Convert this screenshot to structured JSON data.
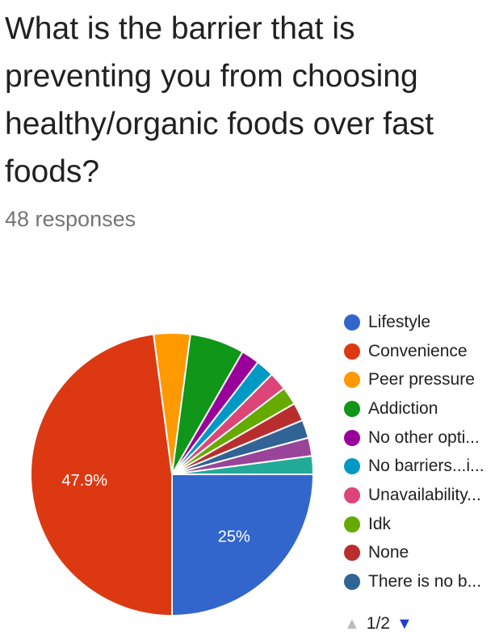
{
  "question": {
    "title": "What is the barrier that is preventing you from choosing healthy/organic foods over fast foods?",
    "responses": "48 responses"
  },
  "pager": {
    "page": "1/2",
    "prev_icon": "triangle-up-icon",
    "next_icon": "triangle-down-icon"
  },
  "chart_data": {
    "type": "pie",
    "slices": [
      {
        "label": "Lifestyle",
        "value": 25,
        "count": 12,
        "color": "#3366cc",
        "data_label": "25%"
      },
      {
        "label": "Convenience",
        "value": 47.9,
        "count": 23,
        "color": "#dc3912",
        "data_label": "47.9%"
      },
      {
        "label": "Peer pressure",
        "value": 4.2,
        "count": 2,
        "color": "#ff9900"
      },
      {
        "label": "Addiction",
        "value": 6.3,
        "count": 3,
        "color": "#109618"
      },
      {
        "label": "No other opti...",
        "value": 2.1,
        "count": 1,
        "color": "#990099"
      },
      {
        "label": "No barriers...i...",
        "value": 2.1,
        "count": 1,
        "color": "#0099c6"
      },
      {
        "label": "Unavailability...",
        "value": 2.1,
        "count": 1,
        "color": "#dd4477"
      },
      {
        "label": "Idk",
        "value": 2.1,
        "count": 1,
        "color": "#66aa00"
      },
      {
        "label": "None",
        "value": 2.1,
        "count": 1,
        "color": "#b82e2e"
      },
      {
        "label": "There is no b...",
        "value": 2.1,
        "count": 1,
        "color": "#316395"
      },
      {
        "label": "",
        "value": 2.1,
        "count": 1,
        "color": "#994499"
      },
      {
        "label": "",
        "value": 2.1,
        "count": 1,
        "color": "#22aa99"
      }
    ],
    "legend_position": "right",
    "legend_page": "1/2"
  }
}
